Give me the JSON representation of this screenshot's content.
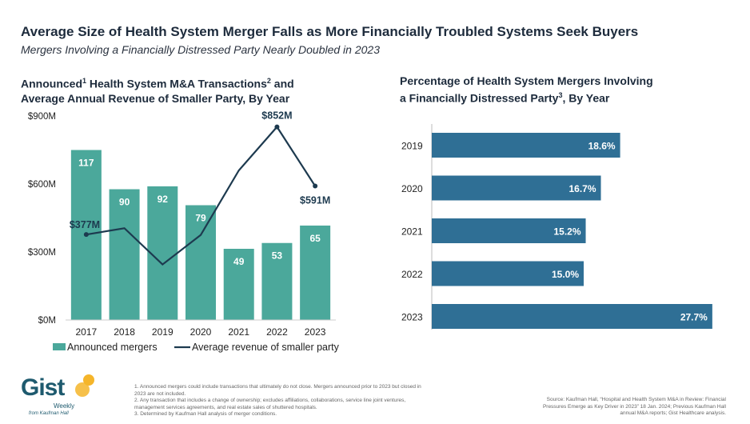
{
  "header": {
    "title": "Average Size of Health System Merger Falls as More Financially Troubled Systems Seek Buyers",
    "subtitle": "Mergers Involving a Financially Distressed Party Nearly Doubled in 2023"
  },
  "left_title": {
    "line1_a": "Announced",
    "line1_sup1": "1",
    "line1_b": " Health System M&A Transactions",
    "line1_sup2": "2",
    "line1_c": " and",
    "line2": "Average Annual Revenue of Smaller Party, By Year"
  },
  "right_title": {
    "line1": "Percentage of Health System Mergers Involving",
    "line2_a": "a Financially Distressed Party",
    "line2_sup": "3",
    "line2_b": ", By Year"
  },
  "chart_data": [
    {
      "type": "bar",
      "categories": [
        "2017",
        "2018",
        "2019",
        "2020",
        "2021",
        "2022",
        "2023"
      ],
      "series": [
        {
          "name": "Announced mergers",
          "type": "bar",
          "values": [
            117,
            90,
            92,
            79,
            49,
            53,
            65
          ],
          "color": "#4ba89b"
        },
        {
          "name": "Average revenue of smaller party",
          "type": "line",
          "values": [
            377,
            405,
            245,
            375,
            660,
            852,
            591
          ],
          "color": "#1d3a4f",
          "unit": "$M"
        }
      ],
      "y_axis_ticks": [
        "$0M",
        "$300M",
        "$600M",
        "$900M"
      ],
      "ylim": [
        0,
        900
      ],
      "line_labels": [
        {
          "index": 0,
          "text": "$377M"
        },
        {
          "index": 5,
          "text": "$852M"
        },
        {
          "index": 6,
          "text": "$591M"
        }
      ],
      "legend": {
        "position": "bottom"
      }
    },
    {
      "type": "bar",
      "orientation": "horizontal",
      "categories": [
        "2019",
        "2020",
        "2021",
        "2022",
        "2023"
      ],
      "values": [
        18.6,
        16.7,
        15.2,
        15.0,
        27.7
      ],
      "labels": [
        "18.6%",
        "16.7%",
        "15.2%",
        "15.0%",
        "27.7%"
      ],
      "color": "#2f6f95",
      "xlim": [
        0,
        30
      ]
    }
  ],
  "logo": {
    "brand": "Gist",
    "weekly": "Weekly",
    "from": "from Kaufman Hall"
  },
  "footnotes": [
    "1.  Announced mergers could include transactions that ultimately do not close. Mergers announced prior to 2023 but closed in 2023 are not included.",
    "2.  Any transaction that includes a change of ownership; excludes affiliations, collaborations, service line joint ventures, management services agreements, and real estate sales of shuttered hospitals.",
    "3.  Determined by Kaufman Hall analysis of merger conditions."
  ],
  "source": "Source: Kaufman Hall, “Hospital and Health System M&A in Review: Financial Pressures Emerge as Key Driver in 2023” 18 Jan. 2024; Previous Kaufman Hall annual M&A reports; Gist Healthcare analysis."
}
